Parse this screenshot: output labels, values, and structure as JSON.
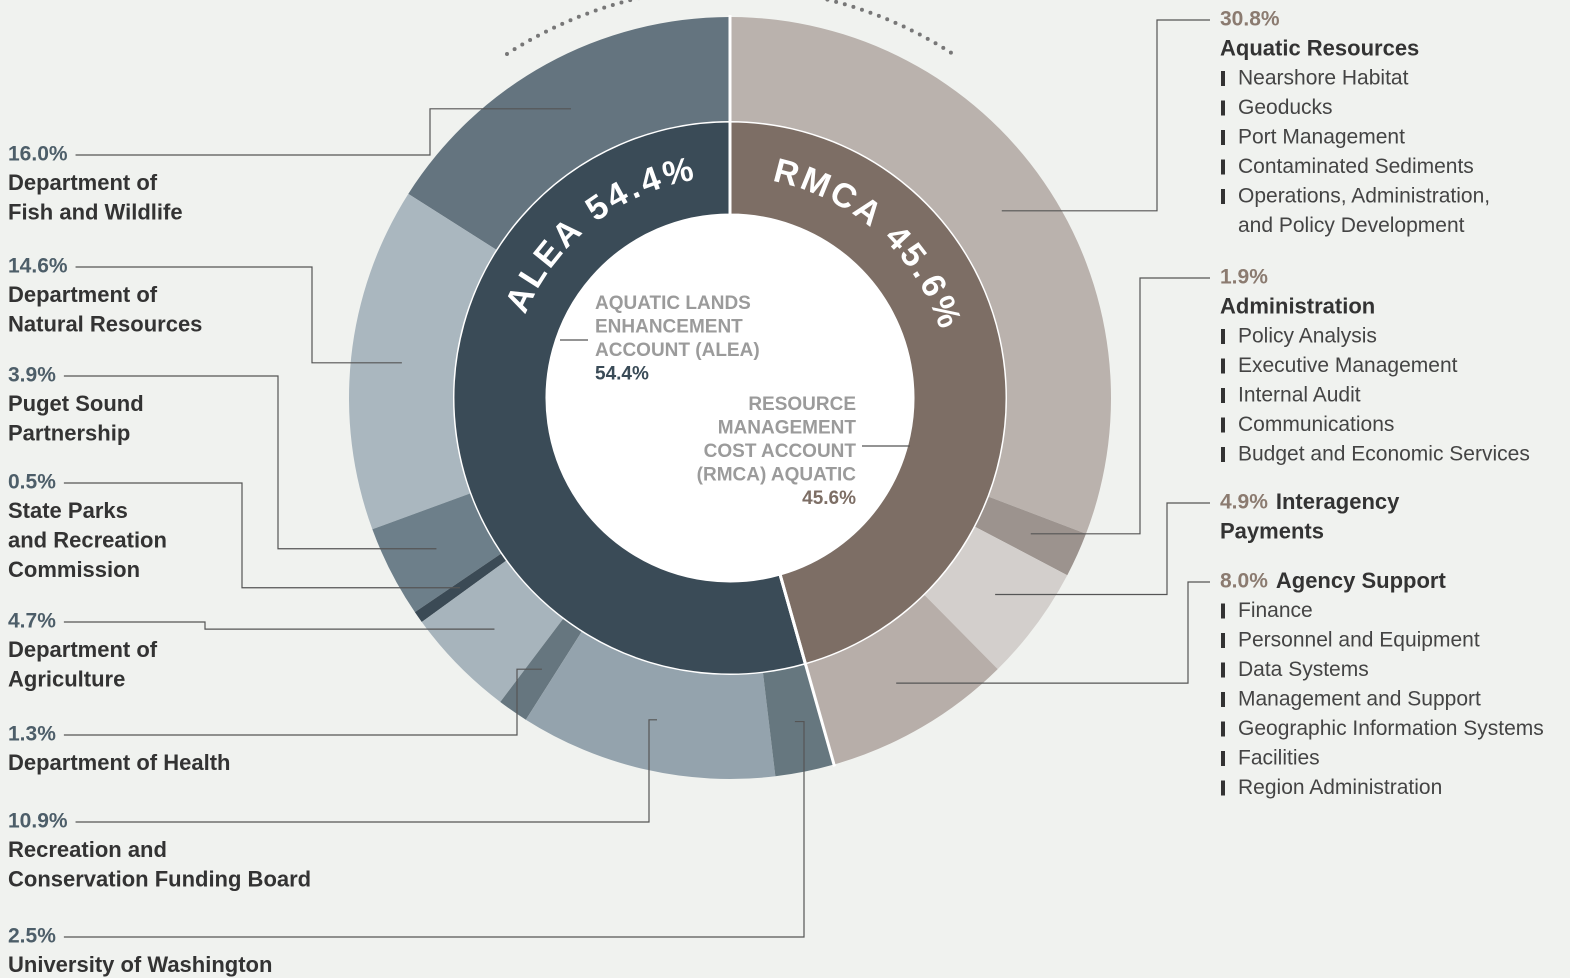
{
  "chart_data": {
    "type": "nested-donut",
    "groups": [
      {
        "name": "ALEA",
        "value": 54.4,
        "value_label": "54.4%",
        "color": "#3a4b57",
        "center_lines": [
          "AQUATIC LANDS",
          "ENHANCEMENT",
          "ACCOUNT (ALEA)"
        ],
        "children": [
          {
            "name_lines": [
              "Department of",
              "Fish and Wildlife"
            ],
            "value": 16.0,
            "value_label": "16.0%",
            "color": "#64747f"
          },
          {
            "name_lines": [
              "Department of",
              "Natural Resources"
            ],
            "value": 14.6,
            "value_label": "14.6%",
            "color": "#aab7bf"
          },
          {
            "name_lines": [
              "Puget Sound",
              "Partnership"
            ],
            "value": 3.9,
            "value_label": "3.9%",
            "color": "#6d7f8a"
          },
          {
            "name_lines": [
              "State Parks",
              "and Recreation",
              "Commission"
            ],
            "value": 0.5,
            "value_label": "0.5%",
            "color": "#3b4a55"
          },
          {
            "name_lines": [
              "Department of",
              "Agriculture"
            ],
            "value": 4.7,
            "value_label": "4.7%",
            "color": "#a7b4bc"
          },
          {
            "name_lines": [
              "Department of Health"
            ],
            "value": 1.3,
            "value_label": "1.3%",
            "color": "#66767f"
          },
          {
            "name_lines": [
              "Recreation and",
              "Conservation Funding Board"
            ],
            "value": 10.9,
            "value_label": "10.9%",
            "color": "#94a3ad"
          },
          {
            "name_lines": [
              "University of Washington"
            ],
            "value": 2.5,
            "value_label": "2.5%",
            "color": "#66777f"
          }
        ]
      },
      {
        "name": "RMCA",
        "value": 45.6,
        "value_label": "45.6%",
        "color": "#7d6e65",
        "center_lines": [
          "RESOURCE",
          "MANAGEMENT",
          "COST ACCOUNT",
          "(RMCA) AQUATIC"
        ],
        "children": [
          {
            "name_lines": [
              "Aquatic Resources"
            ],
            "value": 30.8,
            "value_label": "30.8%",
            "color": "#bab2ad",
            "items": [
              [
                "Nearshore Habitat"
              ],
              [
                "Geoducks"
              ],
              [
                "Port Management"
              ],
              [
                "Contaminated Sediments"
              ],
              [
                "Operations, Administration,",
                "and Policy Development"
              ]
            ]
          },
          {
            "name_lines": [
              "Administration"
            ],
            "value": 1.9,
            "value_label": "1.9%",
            "color": "#9c938e",
            "items": [
              [
                "Policy Analysis"
              ],
              [
                "Executive Management"
              ],
              [
                "Internal Audit"
              ],
              [
                "Communications"
              ],
              [
                "Budget and Economic Services"
              ]
            ]
          },
          {
            "name_lines": [
              "Interagency",
              "Payments"
            ],
            "value": 4.9,
            "value_label": "4.9%",
            "color": "#d3cfcc",
            "items": []
          },
          {
            "name_lines": [
              "Agency Support"
            ],
            "value": 8.0,
            "value_label": "8.0%",
            "color": "#b7aea9",
            "items": [
              [
                "Finance"
              ],
              [
                "Personnel and Equipment"
              ],
              [
                "Data Systems"
              ],
              [
                "Management and Support"
              ],
              [
                "Geographic Information Systems"
              ],
              [
                "Facilities"
              ],
              [
                "Region Administration"
              ]
            ]
          }
        ]
      }
    ]
  }
}
